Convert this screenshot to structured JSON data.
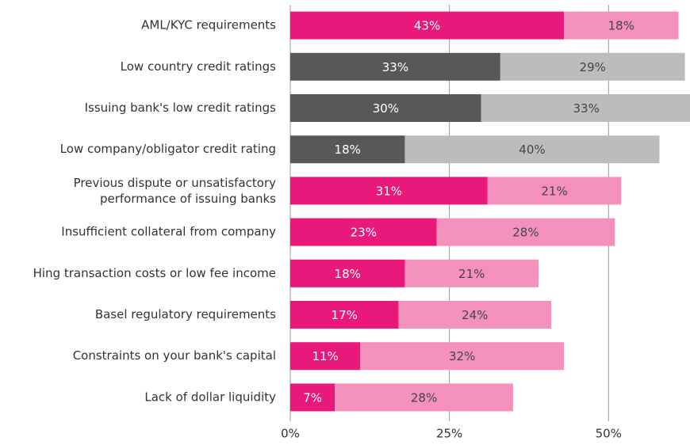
{
  "chart_data": {
    "type": "stacked-bar-horizontal",
    "categories": [
      "AML/KYC requirements",
      "Low country credit ratings",
      "Issuing bank's low credit ratings",
      "Low company/obligator credit rating",
      "Previous dispute or unsatisfactory\nperformance of issuing banks",
      "Insufficient collateral from company",
      "Hing transaction costs or low fee income",
      "Basel regulatory requirements",
      "Constraints on your bank's capital",
      "Lack of dollar liquidity"
    ],
    "series": [
      {
        "values": [
          43,
          33,
          30,
          18,
          31,
          23,
          18,
          17,
          11,
          7
        ],
        "value_labels": [
          "43%",
          "33%",
          "30%",
          "18%",
          "31%",
          "23%",
          "18%",
          "17%",
          "11%",
          "7%"
        ],
        "colors": [
          "#e8197a",
          "#58585a",
          "#58585a",
          "#58585a",
          "#e8197a",
          "#e8197a",
          "#e8197a",
          "#e8197a",
          "#e8197a",
          "#e8197a"
        ],
        "label_color": "#ffffff"
      },
      {
        "values": [
          18,
          29,
          33,
          40,
          21,
          28,
          21,
          24,
          32,
          28
        ],
        "value_labels": [
          "18%",
          "29%",
          "33%",
          "40%",
          "21%",
          "28%",
          "21%",
          "24%",
          "32%",
          "28%"
        ],
        "colors": [
          "#f391bc",
          "#bcbcbe",
          "#bcbcbe",
          "#bcbcbe",
          "#f391bc",
          "#f391bc",
          "#f391bc",
          "#f391bc",
          "#f391bc",
          "#f391bc"
        ],
        "label_color": "#444444"
      }
    ],
    "xlim": [
      0,
      62.8
    ],
    "xticks": [
      {
        "value": 0,
        "label": "0%"
      },
      {
        "value": 25,
        "label": "25%"
      },
      {
        "value": 50,
        "label": "50%"
      }
    ],
    "grid": true,
    "grid_color": "#9a9a9a"
  }
}
